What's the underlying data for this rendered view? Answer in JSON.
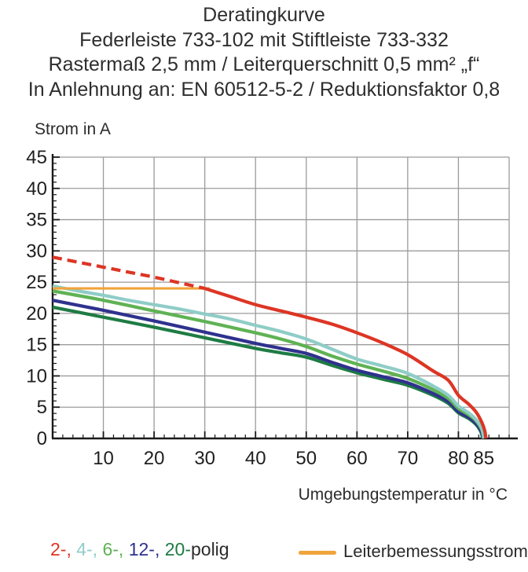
{
  "header": {
    "lines": [
      "Deratingkurve",
      "Federleiste 733-102 mit Stiftleiste 733-332",
      "Rastermaß 2,5 mm / Leiterquerschnitt 0,5 mm² „f“",
      "In Anlehnung an: EN 60512-5-2 / Reduktionsfaktor 0,8"
    ]
  },
  "colors": {
    "grid": "#9b9b9b",
    "axis": "#1a1a1a",
    "tick_label": "#1f1f1f",
    "red_2pole": "#dd3524",
    "cyan_4pole": "#8fcdc7",
    "green_6pole": "#5fb254",
    "navy_12pole": "#2f318e",
    "darkgreen_20pole": "#1e7b44",
    "orange_rated": "#f0a43c"
  },
  "legend": {
    "poles": {
      "items": [
        {
          "label": "2-,",
          "color": "#dd3524"
        },
        {
          "label": "4-,",
          "color": "#8fcdc7"
        },
        {
          "label": "6-,",
          "color": "#5fb254"
        },
        {
          "label": "12-,",
          "color": "#2f318e"
        },
        {
          "label": "20-",
          "color": "#1e7b44"
        }
      ],
      "suffix": "polig"
    },
    "rated": {
      "label": "Leiterbemessungsstrom",
      "color": "#f0a43c"
    }
  },
  "chart_data": {
    "type": "line",
    "title": "Deratingkurve",
    "xlabel": "Umgebungstemperatur in °C",
    "ylabel": "Strom in A",
    "xlim": [
      0,
      92
    ],
    "ylim": [
      0,
      45
    ],
    "x_major_ticks": [
      10,
      20,
      30,
      40,
      50,
      60,
      70,
      80,
      85
    ],
    "x_gridlines": [
      10,
      20,
      30,
      40,
      50,
      60,
      70,
      80,
      90
    ],
    "x_minor_step": 2,
    "x_minor_max": 90,
    "y_ticks": [
      0,
      5,
      10,
      15,
      20,
      25,
      30,
      35,
      40,
      45
    ],
    "y_gridlines": [
      5,
      10,
      15,
      20,
      25,
      30,
      35,
      40,
      45
    ],
    "y_minor_step": 1,
    "grid": true,
    "legend_position": "bottom",
    "series": [
      {
        "name": "20-polig",
        "color": "#1e7b44",
        "dash": "solid",
        "width": 4.2,
        "points": [
          [
            0,
            21.0
          ],
          [
            10,
            19.4
          ],
          [
            20,
            17.8
          ],
          [
            30,
            16.1
          ],
          [
            40,
            14.4
          ],
          [
            45,
            13.7
          ],
          [
            50,
            13.0
          ],
          [
            55,
            11.7
          ],
          [
            60,
            10.5
          ],
          [
            65,
            9.5
          ],
          [
            70,
            8.5
          ],
          [
            75,
            6.9
          ],
          [
            78,
            5.6
          ],
          [
            80,
            4.1
          ],
          [
            82,
            3.2
          ],
          [
            83.5,
            2.2
          ],
          [
            84.4,
            1.1
          ],
          [
            84.8,
            0
          ]
        ]
      },
      {
        "name": "12-polig",
        "color": "#2f318e",
        "dash": "solid",
        "width": 4.2,
        "points": [
          [
            0,
            22.1
          ],
          [
            10,
            20.5
          ],
          [
            20,
            18.8
          ],
          [
            30,
            17.0
          ],
          [
            40,
            15.2
          ],
          [
            45,
            14.4
          ],
          [
            50,
            13.6
          ],
          [
            55,
            12.2
          ],
          [
            60,
            10.9
          ],
          [
            65,
            9.9
          ],
          [
            70,
            8.9
          ],
          [
            75,
            7.2
          ],
          [
            78,
            5.9
          ],
          [
            80,
            4.3
          ],
          [
            82,
            3.4
          ],
          [
            83.5,
            2.4
          ],
          [
            84.5,
            1.2
          ],
          [
            84.9,
            0
          ]
        ]
      },
      {
        "name": "6-polig",
        "color": "#5fb254",
        "dash": "solid",
        "width": 4.2,
        "points": [
          [
            0,
            23.6
          ],
          [
            10,
            22.1
          ],
          [
            20,
            20.4
          ],
          [
            30,
            18.7
          ],
          [
            40,
            16.9
          ],
          [
            45,
            15.9
          ],
          [
            50,
            14.7
          ],
          [
            55,
            13.2
          ],
          [
            60,
            11.9
          ],
          [
            65,
            10.8
          ],
          [
            70,
            9.6
          ],
          [
            75,
            7.8
          ],
          [
            78,
            6.4
          ],
          [
            80,
            4.8
          ],
          [
            82,
            3.8
          ],
          [
            83.5,
            2.8
          ],
          [
            84.6,
            1.4
          ],
          [
            85,
            0
          ]
        ]
      },
      {
        "name": "4-polig",
        "color": "#8fcdc7",
        "dash": "solid",
        "width": 4.2,
        "points": [
          [
            0,
            24.4
          ],
          [
            5,
            23.6
          ],
          [
            10,
            22.9
          ],
          [
            15,
            22.1
          ],
          [
            20,
            21.4
          ],
          [
            25,
            20.7
          ],
          [
            30,
            19.9
          ],
          [
            35,
            19.1
          ],
          [
            40,
            18.1
          ],
          [
            45,
            17.1
          ],
          [
            50,
            15.9
          ],
          [
            55,
            14.3
          ],
          [
            60,
            12.7
          ],
          [
            65,
            11.6
          ],
          [
            70,
            10.4
          ],
          [
            75,
            8.4
          ],
          [
            78,
            6.9
          ],
          [
            80,
            5.2
          ],
          [
            82,
            4.1
          ],
          [
            83.5,
            3.0
          ],
          [
            84.6,
            1.6
          ],
          [
            85,
            0
          ]
        ]
      },
      {
        "name": "Leiterbemessungsstrom",
        "color": "#f0a43c",
        "dash": "solid",
        "width": 3.2,
        "points": [
          [
            0,
            24
          ],
          [
            31,
            24
          ]
        ]
      },
      {
        "name": "2-polig (Bereich oberhalb Bemessungsstrom)",
        "color": "#dd3524",
        "dash": "dashed",
        "width": 4.2,
        "points": [
          [
            0,
            29
          ],
          [
            5,
            28.2
          ],
          [
            10,
            27.4
          ],
          [
            15,
            26.6
          ],
          [
            20,
            25.8
          ],
          [
            25,
            24.9
          ],
          [
            30,
            24
          ]
        ]
      },
      {
        "name": "2-polig",
        "color": "#dd3524",
        "dash": "solid",
        "width": 4.2,
        "points": [
          [
            30,
            24
          ],
          [
            35,
            22.7
          ],
          [
            40,
            21.4
          ],
          [
            45,
            20.4
          ],
          [
            50,
            19.4
          ],
          [
            55,
            18.3
          ],
          [
            60,
            16.9
          ],
          [
            65,
            15.3
          ],
          [
            70,
            13.4
          ],
          [
            75,
            10.8
          ],
          [
            78,
            9.3
          ],
          [
            80,
            6.9
          ],
          [
            82,
            5.5
          ],
          [
            83.5,
            4.2
          ],
          [
            84.6,
            2.6
          ],
          [
            85.2,
            1.2
          ],
          [
            85.4,
            0
          ]
        ]
      }
    ]
  }
}
